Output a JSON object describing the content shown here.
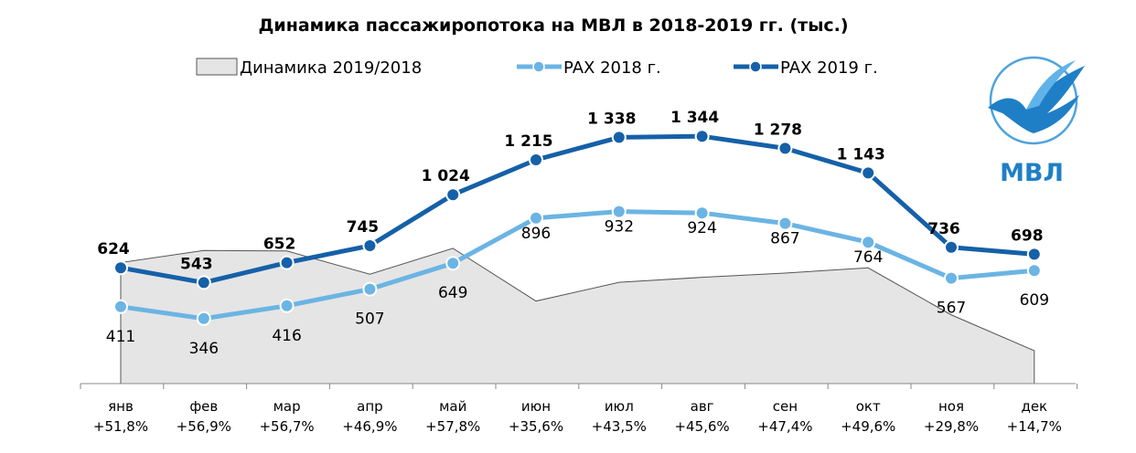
{
  "chart_data": {
    "type": "line",
    "title": "Динамика пассажиропотока на МВЛ в 2018-2019 гг. (тыс.)",
    "categories": [
      "янв",
      "фев",
      "мар",
      "апр",
      "май",
      "июн",
      "июл",
      "авг",
      "сен",
      "окт",
      "ноя",
      "дек"
    ],
    "growth_labels": [
      "+51,8%",
      "+56,9%",
      "+56,7%",
      "+46,9%",
      "+57,8%",
      "+35,6%",
      "+43,5%",
      "+45,6%",
      "+47,4%",
      "+49,6%",
      "+29,8%",
      "+14,7%"
    ],
    "area": {
      "name": "Динамика 2019/2018",
      "values": [
        51.8,
        56.9,
        56.7,
        46.9,
        57.8,
        35.6,
        43.5,
        45.6,
        47.4,
        49.6,
        29.8,
        14.7
      ]
    },
    "series": [
      {
        "name": "PAX 2018 г.",
        "color": "#6BB4E4",
        "values": [
          411,
          346,
          416,
          507,
          649,
          896,
          932,
          924,
          867,
          764,
          567,
          609
        ],
        "labels": [
          "411",
          "346",
          "416",
          "507",
          "649",
          "896",
          "932",
          "924",
          "867",
          "764",
          "567",
          "609"
        ]
      },
      {
        "name": "PAX 2019 г.",
        "color": "#1560A8",
        "values": [
          624,
          543,
          652,
          745,
          1024,
          1215,
          1338,
          1344,
          1278,
          1143,
          736,
          698
        ],
        "labels": [
          "624",
          "543",
          "652",
          "745",
          "1 024",
          "1 215",
          "1 338",
          "1 344",
          "1 278",
          "1 143",
          "736",
          "698"
        ]
      }
    ],
    "legend_position": "top",
    "grid": false,
    "area_color": "#E5E5E5"
  },
  "logo": {
    "text": "МВЛ",
    "color": "#1F7FC6",
    "icon": "pegasus-icon"
  }
}
